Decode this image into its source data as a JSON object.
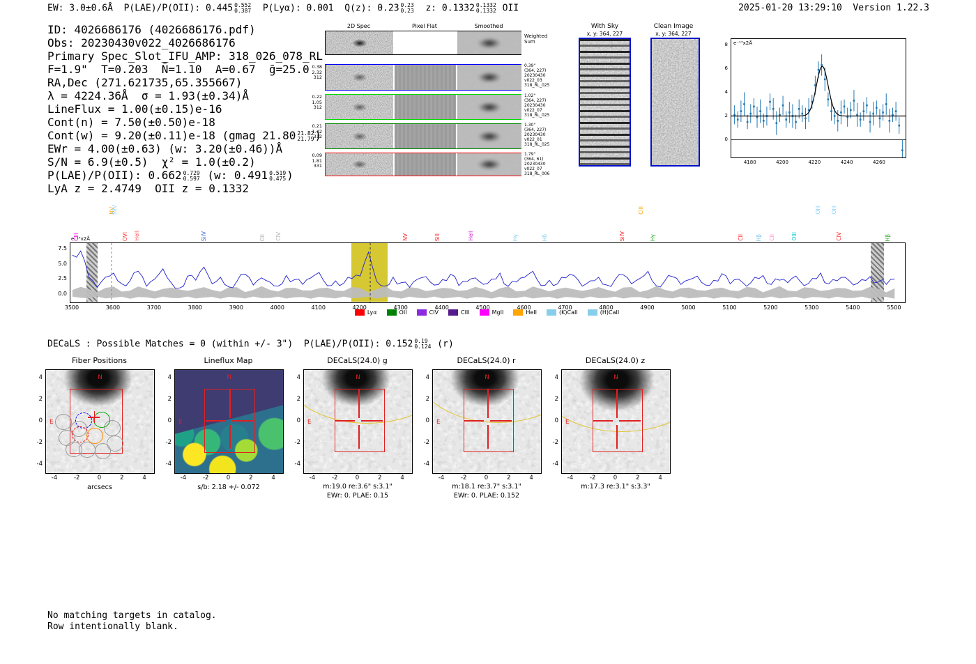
{
  "page": {
    "timestamp": "2025-01-20 13:29:10  Version 1.22.3"
  },
  "header_line": [
    {
      "t": "EW: 3.0±0.6Å  P(LAE)/P(OII): 0.445"
    },
    {
      "up": "0.552",
      "dn": "0.387"
    },
    {
      "t": "  P(Lyα): 0.001  Q(z): 0.23"
    },
    {
      "up": "0.23",
      "dn": "0.23"
    },
    {
      "t": "  z: 0.1332"
    },
    {
      "up": "0.1332",
      "dn": "0.1332"
    },
    {
      "t": " OII"
    }
  ],
  "info_lines": [
    [
      {
        "t": "ID: 4026686176 (4026686176.pdf)"
      }
    ],
    [
      {
        "t": "Obs: 20230430v022_4026686176"
      }
    ],
    [
      {
        "t": "Primary Spec_Slot_IFU_AMP: 318_026_078_RL"
      }
    ],
    [
      {
        "t": "F=1.9\"  T=0.203  N̄=1.10  A=0.67  ḡ=25.0"
      }
    ],
    [
      {
        "t": "RA,Dec (271.621735,65.355667)"
      }
    ],
    [
      {
        "t": "λ = 4224.36Å  σ = 1.93(±0.34)Å"
      }
    ],
    [
      {
        "t": "LineFlux = 1.00(±0.15)e-16"
      }
    ],
    [
      {
        "t": "Cont(n) = 7.50(±0.50)e-18"
      }
    ],
    [
      {
        "t": "Cont(w) = 9.20(±0.11)e-18 (gmag 21.80"
      },
      {
        "up": "21.82",
        "dn": "21.79"
      },
      {
        "t": ")"
      }
    ],
    [
      {
        "t": "EWr = 4.00(±0.63) (w: 3.20(±0.46))Å"
      }
    ],
    [
      {
        "t": "S/N = 6.9(±0.5)  χ² = 1.0(±0.2)"
      }
    ],
    [
      {
        "t": "P(LAE)/P(OII): 0.662"
      },
      {
        "up": "0.729",
        "dn": "0.597"
      },
      {
        "t": " (w: 0.491"
      },
      {
        "up": "0.519",
        "dn": "0.475"
      },
      {
        "t": ")"
      }
    ],
    [
      {
        "t": "LyA z = 2.4749  OII z = 0.1332"
      }
    ]
  ],
  "cutouts2d": {
    "col_titles": [
      "2D Spec",
      "Pixel Flat",
      "Smoothed"
    ],
    "rows": [
      {
        "left": [],
        "right": [
          "Weighted",
          "Sum"
        ],
        "border": "#000000"
      },
      {
        "left": [
          "0.38",
          "2.32",
          "312"
        ],
        "right": [
          "0.39\"",
          "(364, 227)",
          "20230430",
          "v022_03",
          "318_RL_025"
        ],
        "border": "#0000ff"
      },
      {
        "left": [
          "0.22",
          "1.05",
          "312"
        ],
        "right": [
          "1.02\"",
          "(364, 227)",
          "20230430",
          "v022_07",
          "318_RL_025"
        ],
        "border": "#00dd00"
      },
      {
        "left": [
          "0.21",
          "1.42",
          "312"
        ],
        "right": [
          "1.30\"",
          "(364, 227)",
          "20230430",
          "v022_01",
          "318_RL_025"
        ],
        "border": "#008800"
      },
      {
        "left": [
          "0.09",
          "1.81",
          "331"
        ],
        "right": [
          "1.79\"",
          "(364, 61)",
          "20230430",
          "v022_07",
          "318_RL_006"
        ],
        "border": "#ff0000"
      }
    ]
  },
  "sky_panels": [
    {
      "title": "With Sky",
      "subtitle": "x, y: 364, 227"
    },
    {
      "title": "Clean Image",
      "subtitle": "x, y: 364, 227"
    }
  ],
  "decals_line": [
    {
      "t": "DECaLS : Possible Matches = 0 (within +/- 3\")  P(LAE)/P(OII): 0.152"
    },
    {
      "up": "0.19",
      "dn": "0.124"
    },
    {
      "t": " (r)"
    }
  ],
  "footer_lines": [
    "No matching targets in catalog.",
    "Row intentionally blank."
  ],
  "chart_data": [
    {
      "type": "scatter",
      "name": "line-fit-plot",
      "ylabel": "e⁻¹⁷x2Å",
      "xlim": [
        4168,
        4276
      ],
      "ylim": [
        -1.5,
        8.5
      ],
      "x_ticks": [
        4180,
        4200,
        4220,
        4240,
        4260
      ],
      "y_ticks": [
        0,
        2,
        4,
        6,
        8
      ],
      "fit": {
        "center": 4224.36,
        "sigma": 1.93,
        "amplitude": 4.2,
        "baseline": 2.0
      },
      "x_start": 4170,
      "x_step": 2,
      "y": [
        2.1,
        1.7,
        2.4,
        3.0,
        1.5,
        2.2,
        2.8,
        1.9,
        2.4,
        1.6,
        2.0,
        3.2,
        2.6,
        1.4,
        2.1,
        2.9,
        1.7,
        2.3,
        2.0,
        1.5,
        2.6,
        2.2,
        1.8,
        2.5,
        3.2,
        4.6,
        5.9,
        6.3,
        5.1,
        3.4,
        2.4,
        2.0,
        1.6,
        2.3,
        2.8,
        1.9,
        2.5,
        3.3,
        2.1,
        1.7,
        2.4,
        2.9,
        1.5,
        2.2,
        2.7,
        1.8,
        2.3,
        3.0,
        1.6,
        2.1,
        2.4,
        1.2,
        -0.9
      ],
      "yerr": [
        0.8,
        0.7,
        0.9,
        1.0,
        0.6,
        0.8,
        0.7,
        0.9,
        1.0,
        0.6,
        0.8,
        0.7,
        0.9,
        1.0,
        0.6,
        0.8,
        0.7,
        0.9,
        1.0,
        0.6,
        0.8,
        0.7,
        0.9,
        1.0,
        0.6,
        0.8,
        0.7,
        0.9,
        1.0,
        0.6,
        0.8,
        0.7,
        0.9,
        1.0,
        0.6,
        0.8,
        0.7,
        0.9,
        1.0,
        0.6,
        0.8,
        0.7,
        0.9,
        1.0,
        0.6,
        0.8,
        0.7,
        0.9,
        1.0,
        0.6,
        0.8,
        0.7,
        0.9
      ],
      "point_color": "#1f77b4",
      "fit_color": "#000000"
    },
    {
      "type": "line",
      "name": "full-spectrum",
      "ylabel": "e⁻¹⁷x2Å",
      "xlim": [
        3495,
        5525
      ],
      "ylim": [
        -1.3,
        8.6
      ],
      "x_ticks": [
        3500,
        3600,
        3700,
        3800,
        3900,
        4000,
        4100,
        4200,
        4300,
        4400,
        4500,
        4600,
        4700,
        4800,
        4900,
        5000,
        5100,
        5200,
        5300,
        5400,
        5500
      ],
      "y_ticks": [
        7.5,
        5.0,
        2.5,
        0.0
      ],
      "x_start": 3500,
      "x_step": 20,
      "values": [
        6.6,
        7.3,
        2.9,
        1.2,
        2.9,
        3.6,
        1.8,
        2.3,
        3.9,
        1.4,
        2.6,
        4.3,
        2.0,
        1.1,
        3.1,
        2.4,
        4.6,
        1.8,
        2.9,
        1.3,
        2.2,
        3.4,
        1.6,
        2.8,
        2.1,
        1.4,
        3.2,
        2.5,
        1.7,
        2.8,
        3.7,
        1.5,
        2.3,
        1.9,
        2.7,
        3.1,
        7.1,
        2.2,
        1.4,
        2.9,
        2.0,
        1.2,
        2.6,
        3.0,
        1.6,
        2.5,
        3.4,
        1.5,
        2.2,
        2.8,
        1.7,
        2.6,
        3.6,
        1.4,
        2.1,
        2.9,
        3.9,
        1.5,
        2.4,
        1.8,
        2.8,
        3.2,
        1.4,
        2.3,
        2.9,
        1.6,
        2.5,
        3.3,
        1.8,
        2.7,
        3.9,
        1.5,
        2.2,
        3.0,
        1.7,
        2.5,
        3.1,
        1.6,
        2.4,
        3.5,
        1.8,
        2.6,
        1.4,
        2.9,
        3.2,
        1.7,
        2.4,
        2.0,
        3.1,
        1.5,
        2.7,
        3.6,
        1.8,
        2.3,
        2.9,
        1.6,
        2.5,
        3.0,
        2.1,
        1.7,
        2.6
      ],
      "line_color": "#2020cc",
      "highlight_band": {
        "x0": 4180,
        "x1": 4268,
        "color": "#d6c832"
      },
      "masked_bands": [
        {
          "x0": 3536,
          "x1": 3562
        },
        {
          "x0": 5444,
          "x1": 5476
        }
      ],
      "dashed_lines": [
        {
          "x": 3595,
          "color": "#888888"
        },
        {
          "x": 4224.36,
          "color": "#333333"
        }
      ],
      "legend": [
        {
          "label": "Lyα",
          "color": "#ff0000"
        },
        {
          "label": "OII",
          "color": "#008000"
        },
        {
          "label": "CIV",
          "color": "#8a2be2"
        },
        {
          "label": "CIII",
          "color": "#551a8b"
        },
        {
          "label": "MgII",
          "color": "#ff00ff"
        },
        {
          "label": "HeII",
          "color": "#ffa500"
        },
        {
          "label": "(K)CaII",
          "color": "#87ceeb"
        },
        {
          "label": "(H)CaII",
          "color": "#87ceeb"
        }
      ],
      "emission_labels": [
        {
          "wl": 3512,
          "label": "CIII",
          "color": "#ee00ee",
          "tall": false
        },
        {
          "wl": 3598,
          "label": "NV",
          "color": "#ffa500",
          "tall": true
        },
        {
          "wl": 3606,
          "label": "SiIV",
          "color": "#9ad0f0",
          "tall": true
        },
        {
          "wl": 3630,
          "label": "OVI",
          "color": "#ff3333",
          "tall": false
        },
        {
          "wl": 3660,
          "label": "HeII",
          "color": "#ff5555",
          "tall": false
        },
        {
          "wl": 3822,
          "label": "SiIV",
          "color": "#4169e1",
          "tall": false
        },
        {
          "wl": 3964,
          "label": "OII",
          "color": "#b0b0b0",
          "tall": false
        },
        {
          "wl": 4004,
          "label": "CIV",
          "color": "#b0b0b0",
          "tall": false
        },
        {
          "wl": 4312,
          "label": "NV",
          "color": "#ff2222",
          "tall": false
        },
        {
          "wl": 4390,
          "label": "SiII",
          "color": "#ff2222",
          "tall": false
        },
        {
          "wl": 4472,
          "label": "HeII",
          "color": "#cc22cc",
          "tall": false
        },
        {
          "wl": 4580,
          "label": "Hγ",
          "color": "#7ec8e3",
          "tall": false
        },
        {
          "wl": 4652,
          "label": "Hδ",
          "color": "#7ec8e3",
          "tall": false
        },
        {
          "wl": 4840,
          "label": "SiIV",
          "color": "#ff2222",
          "tall": false
        },
        {
          "wl": 4886,
          "label": "CIII",
          "color": "#ffa500",
          "tall": true
        },
        {
          "wl": 4914,
          "label": "Hγ",
          "color": "#22aa22",
          "tall": false
        },
        {
          "wl": 5128,
          "label": "CII",
          "color": "#ff2222",
          "tall": false
        },
        {
          "wl": 5172,
          "label": "Hβ",
          "color": "#7ec8e3",
          "tall": false
        },
        {
          "wl": 5205,
          "label": "CII",
          "color": "#ff88cc",
          "tall": false
        },
        {
          "wl": 5258,
          "label": "OIII",
          "color": "#00ced1",
          "tall": false
        },
        {
          "wl": 5316,
          "label": "OIII",
          "color": "#87cefa",
          "tall": true
        },
        {
          "wl": 5356,
          "label": "OIII",
          "color": "#87cefa",
          "tall": true
        },
        {
          "wl": 5368,
          "label": "CIV",
          "color": "#ff2222",
          "tall": false
        },
        {
          "wl": 5486,
          "label": "Hβ",
          "color": "#22aa22",
          "tall": false
        }
      ]
    },
    {
      "type": "cutouts",
      "name": "cutout-row",
      "axis_ticks": [
        -4,
        -2,
        0,
        2,
        4
      ],
      "compass": {
        "n": "N",
        "e": "E"
      },
      "panels": [
        {
          "title": "Fiber Positions",
          "xlabel": "arcsecs"
        },
        {
          "title": "Lineflux Map",
          "caption": "s/b: 2.18 +/- 0.072"
        },
        {
          "title": "DECaLS(24.0) g",
          "caption": "m:19.0 re:3.6\" s:3.1\"",
          "caption2": "EWr: 0. PLAE: 0.15"
        },
        {
          "title": "DECaLS(24.0) r",
          "caption": "m:18.1 re:3.7\" s:3.1\"",
          "caption2": "EWr: 0. PLAE: 0.152"
        },
        {
          "title": "DECaLS(24.0) z",
          "caption": "m:17.3 re:3.1\" s:3.3\""
        }
      ],
      "fibers": {
        "radius": 0.74,
        "gray": [
          [
            -3.25,
            -0.05
          ],
          [
            -2.95,
            -1.5
          ],
          [
            -2.3,
            -2.6
          ],
          [
            -1.15,
            -2.65
          ],
          [
            0.25,
            -2.75
          ],
          [
            1.35,
            -2.05
          ],
          [
            1.1,
            -0.6
          ],
          [
            -1.9,
            -0.7
          ]
        ],
        "colored": [
          {
            "x": -1.45,
            "y": 0.1,
            "color": "#0000ff",
            "dash": true
          },
          {
            "x": 0.15,
            "y": 0.15,
            "color": "#00aa00",
            "dash": false
          },
          {
            "x": -1.75,
            "y": -1.2,
            "color": "#ff0000",
            "dash": true
          },
          {
            "x": -0.45,
            "y": -1.35,
            "color": "#ff8c00",
            "dash": false
          }
        ]
      }
    }
  ]
}
